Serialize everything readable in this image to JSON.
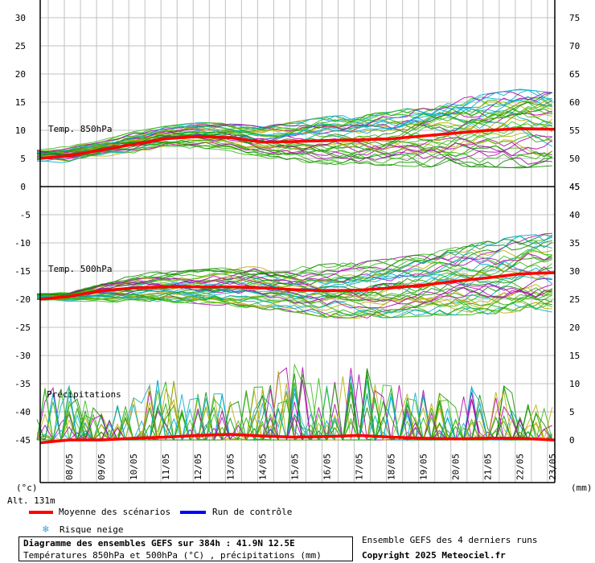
{
  "chart_data": {
    "type": "line",
    "dates": [
      "08/05",
      "09/05",
      "10/05",
      "11/05",
      "12/05",
      "13/05",
      "14/05",
      "15/05",
      "16/05",
      "17/05",
      "18/05",
      "19/05",
      "20/05",
      "21/05",
      "22/05",
      "23/05"
    ],
    "panels": [
      {
        "label": "Temp. 850hPa",
        "left_axis": {
          "ticks": [
            0,
            5,
            10,
            15,
            20,
            25,
            30
          ],
          "range": [
            0,
            33
          ]
        },
        "right_axis": {
          "ticks": [
            45,
            50,
            55,
            60,
            65,
            70,
            75
          ]
        },
        "mean_series": {
          "name": "Moyenne des scénarios",
          "values": [
            5.5,
            6.5,
            7.5,
            8.5,
            8.9,
            8.7,
            7.9,
            8,
            8.2,
            8.3,
            8.5,
            9,
            9.5,
            10,
            10.3,
            10.2
          ]
        },
        "spread_low": [
          4,
          4.5,
          5,
          6,
          6,
          6,
          5.5,
          5,
          4.5,
          4.5,
          5,
          5,
          5,
          5,
          5,
          5
        ],
        "spread_high": [
          7.5,
          8,
          9.5,
          10.5,
          11,
          11,
          11,
          12,
          13,
          13.5,
          14.5,
          16,
          17,
          18,
          19,
          18
        ]
      },
      {
        "label": "Temp. 500hPa",
        "left_axis": {
          "ticks": [
            -5,
            -10,
            -15,
            -20,
            -25,
            -30,
            -35,
            -40,
            -45
          ],
          "range": [
            -45,
            0
          ]
        },
        "right_axis": {
          "ticks": [
            45,
            40,
            35,
            30,
            25,
            20,
            15,
            10,
            5,
            0
          ]
        },
        "mean_series": {
          "name": "Moyenne des scénarios",
          "values": [
            -19.5,
            -18.5,
            -18,
            -17.8,
            -17.8,
            -17.8,
            -18,
            -18.3,
            -18.5,
            -18.4,
            -18,
            -17.5,
            -16.8,
            -16.2,
            -15.5,
            -15.3
          ]
        },
        "spread_low": [
          -20.5,
          -21,
          -21,
          -21,
          -21.5,
          -22,
          -22.5,
          -23,
          -24,
          -24,
          -24,
          -24,
          -24,
          -24,
          -24,
          -24
        ],
        "spread_high": [
          -18.5,
          -17,
          -16,
          -15.5,
          -15.5,
          -15,
          -15,
          -15,
          -14.5,
          -14,
          -13.5,
          -13,
          -12,
          -11,
          -10.5,
          -10
        ]
      },
      {
        "label": "Précipitations",
        "right_axis": {
          "ticks": [
            0,
            5,
            10,
            15,
            20,
            25,
            30,
            35,
            40,
            45
          ],
          "unit": "mm"
        },
        "mean_series": {
          "name": "Moyenne des scénarios",
          "values": [
            0,
            0,
            0.3,
            0.5,
            0.8,
            1,
            0.7,
            0.5,
            0.6,
            0.8,
            0.5,
            0.3,
            0.2,
            0.3,
            0.3,
            0
          ]
        },
        "spikes_mm": [
          10,
          5,
          8,
          12,
          9,
          8,
          10,
          15,
          12,
          14,
          10,
          9,
          8,
          13,
          7,
          6
        ]
      }
    ],
    "left_unit": "(°c)",
    "right_unit": "(mm)",
    "altitude": "Alt. 131m"
  },
  "legend": {
    "mean_label": "Moyenne des scénarios",
    "control_label": "Run de contrôle",
    "snow_label": "Risque neige",
    "mean_color": "#ff0000",
    "control_color": "#0000ff",
    "snow_icon": "snowflake-icon"
  },
  "info": {
    "title": "Diagramme des ensembles GEFS sur 384h : 41.9N 12.5E",
    "subtitle": "Températures 850hPa et 500hPa (°C) , précipitations (mm)",
    "ensemble_note": "Ensemble GEFS des 4 derniers runs",
    "copyright": "Copyright 2025 Meteociel.fr"
  },
  "colors": {
    "member_palette": [
      "#22aa00",
      "#33bb11",
      "#aa00aa",
      "#00aacc",
      "#bbaa00",
      "#118800"
    ],
    "grid": "#c0c0c0"
  }
}
